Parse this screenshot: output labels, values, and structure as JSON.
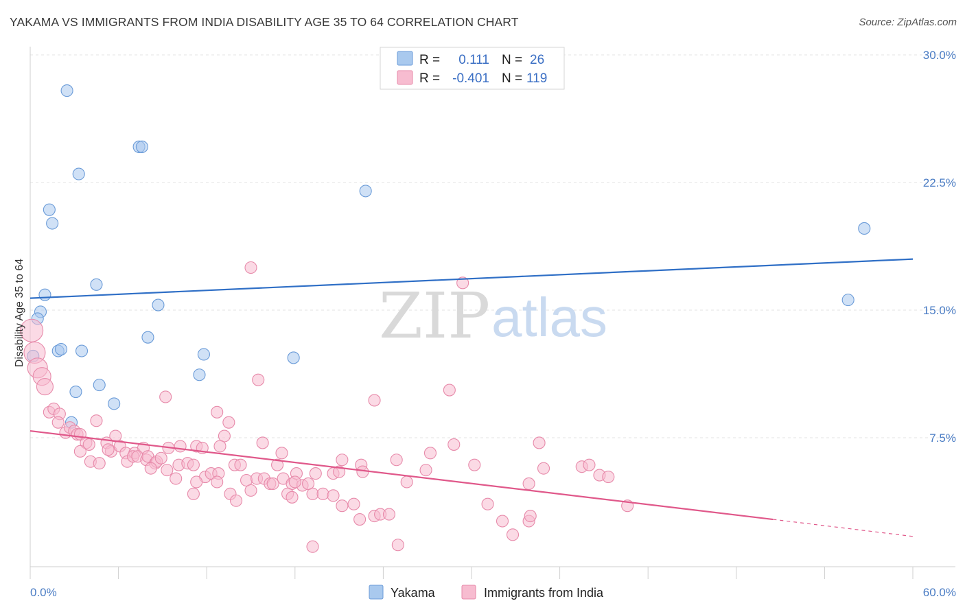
{
  "title": "YAKAMA VS IMMIGRANTS FROM INDIA DISABILITY AGE 35 TO 64 CORRELATION CHART",
  "source": "Source: ZipAtlas.com",
  "watermark": {
    "zip": "ZIP",
    "atlas": "atlas"
  },
  "legend": {
    "r_label": "R =",
    "n_label": "N =",
    "rows": [
      {
        "series": "Yakama",
        "r": "0.111",
        "n": "26",
        "color": "#a9c9ee",
        "stroke": "#6a9bd8"
      },
      {
        "series": "Immigrants from India",
        "r": "-0.401",
        "n": "119",
        "color": "#f7bcd0",
        "stroke": "#e78aaa"
      }
    ]
  },
  "chart_data": {
    "type": "scatter",
    "title": "YAKAMA VS IMMIGRANTS FROM INDIA DISABILITY AGE 35 TO 64 CORRELATION CHART",
    "xlabel": "",
    "ylabel": "Disability Age 35 to 64",
    "xlim": [
      0,
      60
    ],
    "ylim": [
      0,
      31.5
    ],
    "x_tick_labels": [
      "0.0%",
      "60.0%"
    ],
    "y_ticks": [
      7.5,
      15.0,
      22.5,
      30.0
    ],
    "y_tick_labels": [
      "7.5%",
      "15.0%",
      "22.5%",
      "30.0%"
    ],
    "grid": true,
    "series": [
      {
        "name": "Yakama",
        "color": "#a9c9ee",
        "stroke": "#6a9bd8",
        "line_color": "#2f6fc6",
        "trend": {
          "x": [
            0,
            60
          ],
          "y": [
            15.7,
            18.0
          ]
        },
        "points": [
          [
            2.5,
            27.9
          ],
          [
            7.4,
            24.6
          ],
          [
            7.6,
            24.6
          ],
          [
            3.3,
            23.0
          ],
          [
            1.3,
            20.9
          ],
          [
            1.5,
            20.1
          ],
          [
            22.8,
            22.0
          ],
          [
            56.7,
            19.8
          ],
          [
            4.5,
            16.5
          ],
          [
            1.0,
            15.9
          ],
          [
            0.7,
            14.9
          ],
          [
            0.5,
            14.5
          ],
          [
            8.7,
            15.3
          ],
          [
            55.6,
            15.6
          ],
          [
            8.0,
            13.4
          ],
          [
            1.9,
            12.6
          ],
          [
            2.1,
            12.7
          ],
          [
            3.5,
            12.6
          ],
          [
            11.8,
            12.4
          ],
          [
            17.9,
            12.2
          ],
          [
            0.2,
            12.3
          ],
          [
            11.5,
            11.2
          ],
          [
            4.7,
            10.6
          ],
          [
            3.1,
            10.2
          ],
          [
            5.7,
            9.5
          ],
          [
            2.8,
            8.4
          ]
        ]
      },
      {
        "name": "Immigrants from India",
        "color": "#f7bcd0",
        "stroke": "#e78aaa",
        "line_color": "#e0588a",
        "trend": {
          "x": [
            0,
            50.5
          ],
          "y": [
            7.9,
            2.7
          ]
        },
        "trend_dashed": {
          "x": [
            50.5,
            60
          ],
          "y": [
            2.7,
            1.7
          ]
        },
        "points": [
          [
            0.1,
            13.8
          ],
          [
            0.3,
            12.5
          ],
          [
            0.5,
            11.6
          ],
          [
            0.8,
            11.1
          ],
          [
            1.0,
            10.5
          ],
          [
            15.0,
            17.5
          ],
          [
            29.4,
            16.6
          ],
          [
            15.5,
            10.9
          ],
          [
            28.5,
            10.3
          ],
          [
            9.2,
            9.9
          ],
          [
            23.4,
            9.7
          ],
          [
            1.3,
            9.0
          ],
          [
            1.6,
            9.2
          ],
          [
            2.0,
            8.9
          ],
          [
            12.7,
            9.0
          ],
          [
            13.5,
            8.4
          ],
          [
            4.5,
            8.5
          ],
          [
            1.9,
            8.4
          ],
          [
            2.4,
            7.8
          ],
          [
            2.7,
            8.1
          ],
          [
            3.0,
            7.9
          ],
          [
            3.2,
            7.7
          ],
          [
            3.4,
            7.7
          ],
          [
            5.8,
            7.6
          ],
          [
            13.2,
            7.6
          ],
          [
            3.8,
            7.2
          ],
          [
            4.0,
            7.1
          ],
          [
            5.2,
            7.2
          ],
          [
            5.5,
            6.7
          ],
          [
            6.1,
            7.0
          ],
          [
            6.5,
            6.6
          ],
          [
            7.1,
            6.6
          ],
          [
            7.7,
            6.9
          ],
          [
            9.4,
            6.9
          ],
          [
            10.2,
            7.0
          ],
          [
            11.3,
            7.0
          ],
          [
            11.7,
            6.9
          ],
          [
            12.9,
            7.0
          ],
          [
            15.8,
            7.2
          ],
          [
            17.1,
            6.6
          ],
          [
            28.8,
            7.1
          ],
          [
            34.6,
            7.2
          ],
          [
            27.2,
            6.6
          ],
          [
            3.4,
            6.7
          ],
          [
            4.1,
            6.1
          ],
          [
            4.7,
            6.0
          ],
          [
            5.3,
            6.8
          ],
          [
            6.6,
            6.1
          ],
          [
            7.0,
            6.4
          ],
          [
            7.3,
            6.4
          ],
          [
            7.9,
            6.2
          ],
          [
            8.0,
            6.4
          ],
          [
            8.5,
            6.0
          ],
          [
            8.6,
            6.1
          ],
          [
            8.9,
            6.3
          ],
          [
            10.1,
            5.9
          ],
          [
            10.7,
            6.0
          ],
          [
            11.1,
            5.9
          ],
          [
            13.9,
            5.9
          ],
          [
            14.3,
            5.9
          ],
          [
            16.8,
            5.9
          ],
          [
            21.2,
            6.2
          ],
          [
            22.5,
            5.9
          ],
          [
            24.9,
            6.2
          ],
          [
            30.2,
            5.9
          ],
          [
            34.9,
            5.7
          ],
          [
            37.5,
            5.8
          ],
          [
            38.0,
            5.9
          ],
          [
            38.7,
            5.3
          ],
          [
            39.3,
            5.2
          ],
          [
            8.2,
            5.7
          ],
          [
            9.3,
            5.6
          ],
          [
            9.9,
            5.1
          ],
          [
            11.9,
            5.2
          ],
          [
            12.3,
            5.4
          ],
          [
            12.8,
            5.4
          ],
          [
            12.7,
            4.9
          ],
          [
            14.7,
            5.0
          ],
          [
            15.4,
            5.1
          ],
          [
            15.9,
            5.1
          ],
          [
            17.2,
            5.1
          ],
          [
            17.8,
            4.8
          ],
          [
            18.1,
            5.4
          ],
          [
            19.4,
            5.4
          ],
          [
            20.6,
            5.4
          ],
          [
            21.0,
            5.5
          ],
          [
            22.6,
            5.5
          ],
          [
            25.6,
            4.9
          ],
          [
            26.9,
            5.6
          ],
          [
            11.3,
            4.9
          ],
          [
            11.1,
            4.2
          ],
          [
            13.6,
            4.2
          ],
          [
            14.0,
            3.8
          ],
          [
            15.0,
            4.4
          ],
          [
            16.3,
            4.8
          ],
          [
            17.5,
            4.2
          ],
          [
            17.8,
            4.0
          ],
          [
            18.5,
            4.7
          ],
          [
            19.2,
            4.2
          ],
          [
            16.5,
            4.8
          ],
          [
            33.9,
            4.8
          ],
          [
            18.9,
            4.8
          ],
          [
            19.9,
            4.2
          ],
          [
            20.6,
            4.1
          ],
          [
            18.0,
            4.9
          ],
          [
            23.4,
            2.9
          ],
          [
            23.8,
            3.0
          ],
          [
            24.4,
            3.0
          ],
          [
            21.2,
            3.5
          ],
          [
            22.0,
            3.6
          ],
          [
            31.1,
            3.6
          ],
          [
            40.6,
            3.5
          ],
          [
            19.2,
            1.1
          ],
          [
            22.4,
            2.7
          ],
          [
            25.0,
            1.2
          ],
          [
            32.1,
            2.6
          ],
          [
            32.8,
            1.8
          ],
          [
            33.9,
            2.6
          ],
          [
            34.0,
            2.9
          ]
        ]
      }
    ]
  }
}
